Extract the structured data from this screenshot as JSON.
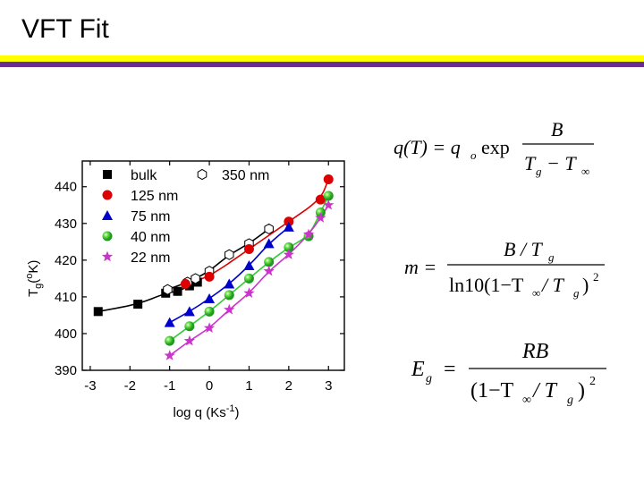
{
  "slide": {
    "title": "VFT Fit"
  },
  "colors": {
    "yellow": "#ffff00",
    "purple": "#6a2c91"
  },
  "chart_data": {
    "type": "scatter",
    "xlabel": "log q (Ks",
    "xlabel_sup": "-1",
    "xlabel_end": ")",
    "ylabel_parts": [
      "T",
      "g",
      "(",
      "o",
      "K)"
    ],
    "xlim": [
      -3.2,
      3.4
    ],
    "ylim": [
      390,
      447
    ],
    "xticks": [
      -3,
      -2,
      -1,
      0,
      1,
      2,
      3
    ],
    "xtick_labels": [
      "-3",
      "-2",
      "-1",
      "0",
      "1",
      "2",
      "3"
    ],
    "yticks": [
      390,
      400,
      410,
      420,
      430,
      440
    ],
    "ytick_labels": [
      "390",
      "400",
      "410",
      "420",
      "430",
      "440"
    ],
    "series": [
      {
        "name": "bulk",
        "marker": "square",
        "color": "#000000",
        "x": [
          -2.8,
          -1.8,
          -1.1,
          -0.8,
          -0.5,
          -0.3
        ],
        "y": [
          406,
          408,
          411,
          411.5,
          413,
          414
        ],
        "fit": {
          "qo": 0,
          "B": 0,
          "x_from": -3,
          "x_to": -0.2
        }
      },
      {
        "name": "350 nm",
        "marker": "open-hexagon",
        "color": "#000000",
        "x": [
          -1.05,
          -0.55,
          -0.35,
          0,
          0.5,
          1.0,
          1.5
        ],
        "y": [
          412,
          414,
          415,
          417,
          421.5,
          424.5,
          428.5
        ],
        "fit": null
      },
      {
        "name": "125 nm",
        "marker": "circle",
        "color": "#dd0000",
        "x": [
          -0.6,
          0,
          1,
          2,
          2.8,
          3
        ],
        "y": [
          413.5,
          415.5,
          423,
          430.5,
          436.5,
          442
        ],
        "fit": null
      },
      {
        "name": "75 nm",
        "marker": "triangle",
        "color": "#0000cc",
        "x": [
          -1,
          -0.5,
          0,
          0.5,
          1,
          1.5,
          2
        ],
        "y": [
          403,
          406,
          409.5,
          413.5,
          418.5,
          424.5,
          429
        ],
        "fit": null
      },
      {
        "name": "40 nm",
        "marker": "sphere",
        "color": "#33cc33",
        "x": [
          -1,
          -0.5,
          0,
          0.5,
          1,
          1.5,
          2,
          2.5,
          2.8,
          3
        ],
        "y": [
          398,
          402,
          406,
          410.5,
          415,
          419.5,
          423.5,
          426.5,
          433,
          437.5
        ],
        "fit": null
      },
      {
        "name": "22 nm",
        "marker": "star",
        "color": "#cc33cc",
        "x": [
          -1,
          -0.5,
          0,
          0.5,
          1,
          1.5,
          2,
          2.5,
          2.8,
          3
        ],
        "y": [
          394,
          398,
          401.5,
          406.5,
          411,
          417,
          421.5,
          427,
          431.5,
          435
        ],
        "fit": null
      }
    ],
    "legend_order": [
      "bulk",
      "125 nm",
      "75 nm",
      "40 nm",
      "22 nm",
      "350 nm"
    ]
  },
  "equations": {
    "eq1": {
      "lhs": "q(T) = q",
      "sub_o": "o",
      "exp": "exp",
      "num": "B",
      "den_Tg": "T",
      "den_g": "g",
      "den_minus": "− T",
      "den_inf": "∞"
    },
    "eq2": {
      "lhs": "m =",
      "num": "B / T",
      "num_g": "g",
      "den": "ln10(1−T",
      "den_inf": "∞",
      "den_mid": " / T",
      "den_g": "g",
      "den_end": ")",
      "den_sq": "2"
    },
    "eq3": {
      "lhs": "E",
      "lhs_g": "g",
      "eq": "=",
      "num": "RB",
      "den": "(1−T",
      "den_inf": "∞",
      "den_mid": " / T",
      "den_g": "g",
      "den_end": ")",
      "den_sq": "2"
    }
  }
}
